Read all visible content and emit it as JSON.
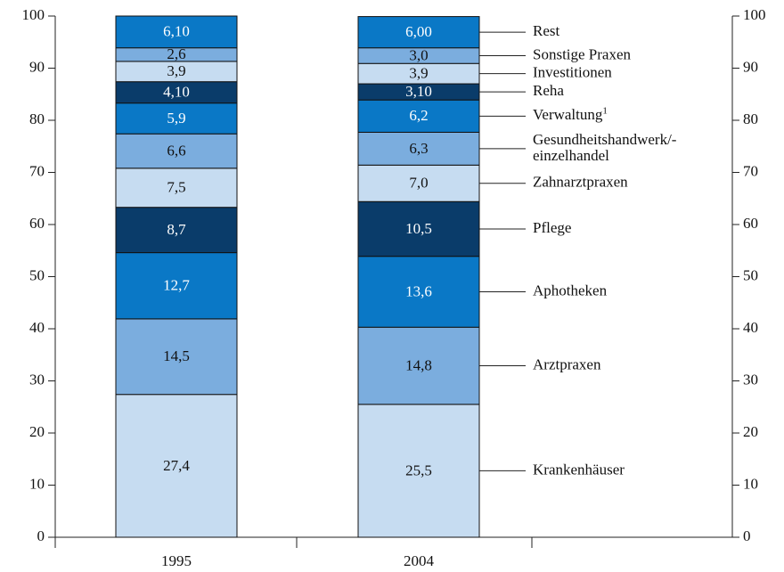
{
  "chart_data": {
    "type": "stacked_bar",
    "categories": [
      "1995",
      "2004"
    ],
    "ylim": [
      0,
      100
    ],
    "yticks": [
      0,
      10,
      20,
      30,
      40,
      50,
      60,
      70,
      80,
      90,
      100
    ],
    "series": [
      {
        "name": "Krankenhäuser",
        "color": "#c6dcf1",
        "values": [
          27.4,
          25.5
        ],
        "value_labels": [
          "27,4",
          "25,5"
        ]
      },
      {
        "name": "Arztpraxen",
        "color": "#7badde",
        "values": [
          14.5,
          14.8
        ],
        "value_labels": [
          "14,5",
          "14,8"
        ]
      },
      {
        "name": "Aphotheken",
        "color": "#0a78c6",
        "values": [
          12.7,
          13.6
        ],
        "value_labels": [
          "12,7",
          "13,6"
        ]
      },
      {
        "name": "Pflege",
        "color": "#0a3c6a",
        "values": [
          8.7,
          10.5
        ],
        "value_labels": [
          "8,7",
          "10,5"
        ]
      },
      {
        "name": "Zahnarztpraxen",
        "color": "#c6dcf1",
        "values": [
          7.5,
          7.0
        ],
        "value_labels": [
          "7,5",
          "7,0"
        ]
      },
      {
        "name": "Gesundheitshandwerk/-einzelhandel",
        "color": "#7badde",
        "values": [
          6.6,
          6.3
        ],
        "value_labels": [
          "6,6",
          "6,3"
        ]
      },
      {
        "name": "Verwaltung",
        "superscript": "1",
        "color": "#0a78c6",
        "values": [
          5.9,
          6.2
        ],
        "value_labels": [
          "5,9",
          "6,2"
        ]
      },
      {
        "name": "Reha",
        "color": "#0a3c6a",
        "values": [
          4.1,
          3.1
        ],
        "value_labels": [
          "4,10",
          "3,10"
        ]
      },
      {
        "name": "Investitionen",
        "color": "#c6dcf1",
        "values": [
          3.9,
          3.9
        ],
        "value_labels": [
          "3,9",
          "3,9"
        ]
      },
      {
        "name": "Sonstige Praxen",
        "color": "#7badde",
        "values": [
          2.6,
          3.0
        ],
        "value_labels": [
          "2,6",
          "3,0"
        ]
      },
      {
        "name": "Rest",
        "color": "#0a78c6",
        "values": [
          6.1,
          6.0
        ],
        "value_labels": [
          "6,10",
          "6,00"
        ]
      }
    ]
  }
}
